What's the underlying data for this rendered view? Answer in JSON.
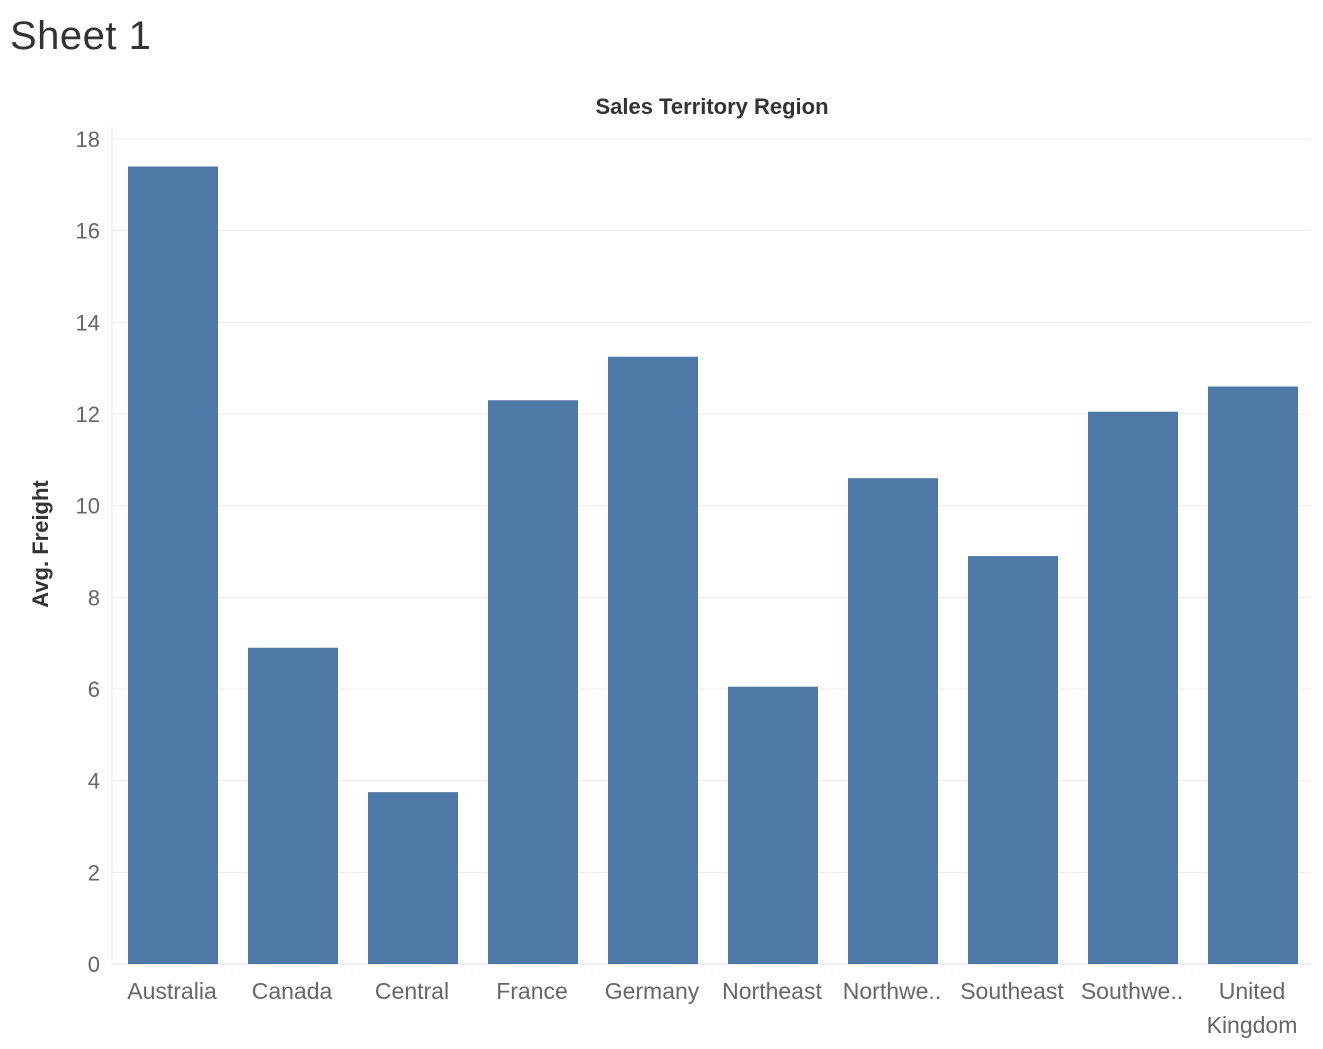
{
  "sheet": {
    "title": "Sheet 1"
  },
  "colors": {
    "bar": "#4e79a7",
    "gridline": "#ececec",
    "text": "#333333",
    "tick_text": "#666666"
  },
  "chart_data": {
    "type": "bar",
    "column_header": "Sales Territory Region",
    "ylabel": "Avg. Freight",
    "xlabel": "",
    "ylim": [
      0,
      18
    ],
    "yticks": [
      0,
      2,
      4,
      6,
      8,
      10,
      12,
      14,
      16,
      18
    ],
    "grid": true,
    "categories": [
      {
        "label": "Australia",
        "lines": [
          "Australia"
        ],
        "value": 17.4
      },
      {
        "label": "Canada",
        "lines": [
          "Canada"
        ],
        "value": 6.9
      },
      {
        "label": "Central",
        "lines": [
          "Central"
        ],
        "value": 3.75
      },
      {
        "label": "France",
        "lines": [
          "France"
        ],
        "value": 12.3
      },
      {
        "label": "Germany",
        "lines": [
          "Germany"
        ],
        "value": 13.25
      },
      {
        "label": "Northeast",
        "lines": [
          "Northeast"
        ],
        "value": 6.05
      },
      {
        "label": "Northwe..",
        "lines": [
          "Northwe.."
        ],
        "value": 10.6
      },
      {
        "label": "Southeast",
        "lines": [
          "Southeast"
        ],
        "value": 8.9
      },
      {
        "label": "Southwe..",
        "lines": [
          "Southwe.."
        ],
        "value": 12.05
      },
      {
        "label": "United Kingdom",
        "lines": [
          "United",
          "Kingdom"
        ],
        "value": 12.6
      }
    ]
  }
}
